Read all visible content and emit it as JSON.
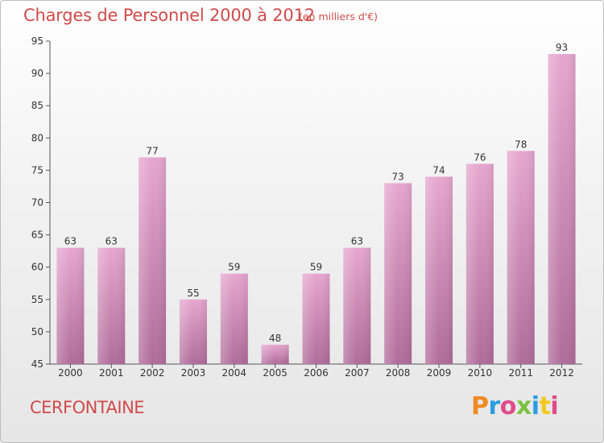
{
  "header": {
    "title": "Charges de Personnel 2000 à 2012",
    "subtitle": "(en milliers d'€)"
  },
  "footer": {
    "place": "CERFONTAINE",
    "logo": "Proxiti",
    "logo_colors": [
      "#f08a24",
      "#2b9de0",
      "#e04b8c",
      "#7cc242",
      "#2b9de0",
      "#f2c81d",
      "#e04b8c"
    ]
  },
  "chart_data": {
    "type": "bar",
    "title": "Charges de Personnel 2000 à 2012",
    "subtitle": "(en milliers d'€)",
    "xlabel": "",
    "ylabel": "",
    "categories": [
      "2000",
      "2001",
      "2002",
      "2003",
      "2004",
      "2005",
      "2006",
      "2007",
      "2008",
      "2009",
      "2010",
      "2011",
      "2012"
    ],
    "values": [
      63,
      63,
      77,
      55,
      59,
      48,
      59,
      63,
      73,
      74,
      76,
      78,
      93
    ],
    "ylim": [
      45,
      95
    ],
    "yticks": [
      45,
      50,
      55,
      60,
      65,
      70,
      75,
      80,
      85,
      90,
      95
    ],
    "grid": false,
    "bar_color_top": "#e6a6cf",
    "bar_color_bottom": "#b06c9a"
  }
}
